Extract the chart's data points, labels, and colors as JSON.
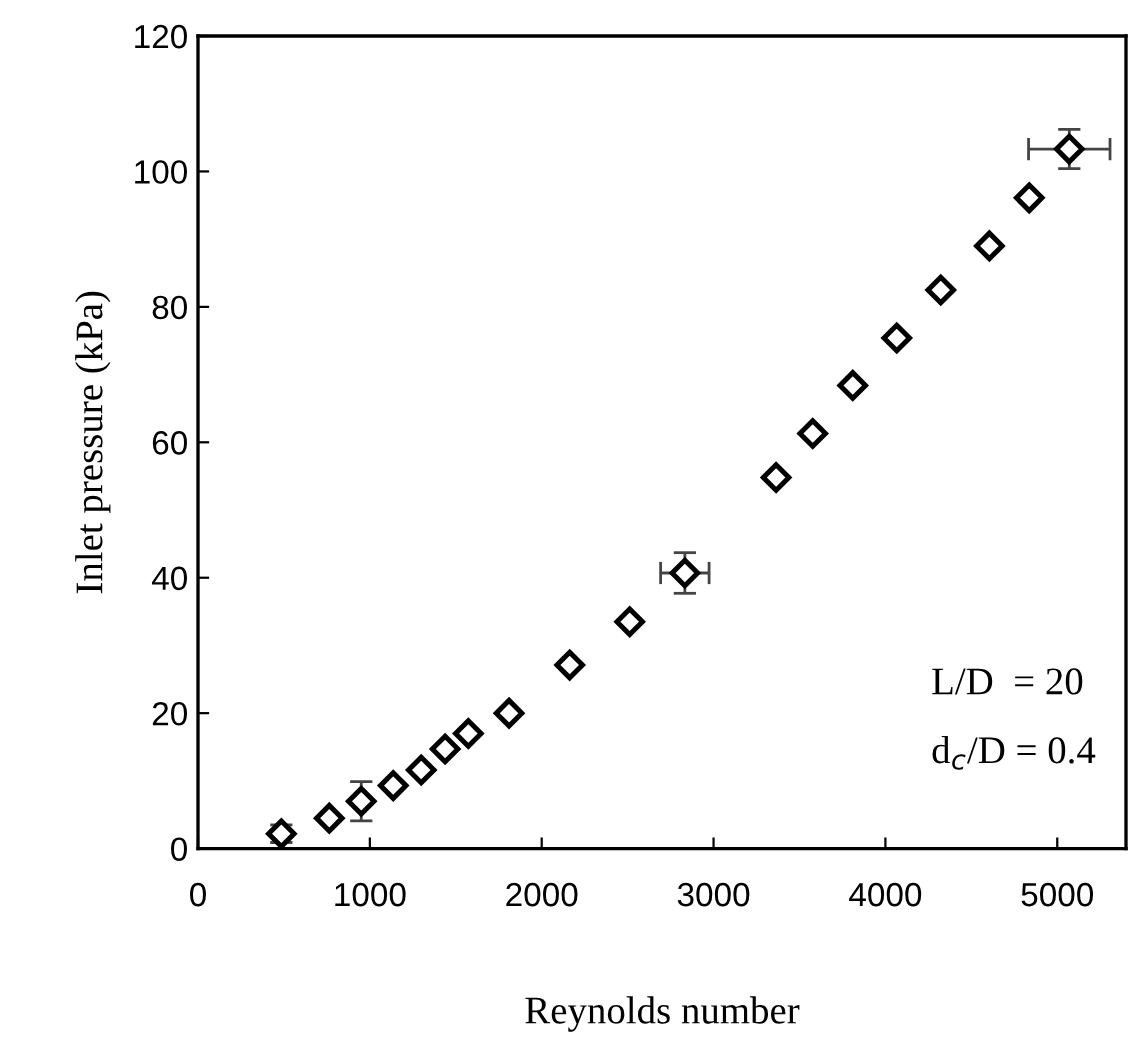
{
  "chart_data": {
    "type": "scatter",
    "xlabel": "Reynolds number",
    "ylabel": "Inlet pressure (kPa)",
    "xlim": [
      0,
      5400
    ],
    "xticks": [
      0,
      1000,
      2000,
      3000,
      4000,
      5000
    ],
    "ylim": [
      0,
      120
    ],
    "yticks": [
      0,
      20,
      40,
      60,
      80,
      100,
      120
    ],
    "marker": "diamond",
    "grid": false,
    "x": [
      485,
      764,
      950,
      1136,
      1299,
      1438,
      1573,
      1810,
      2163,
      2512,
      2833,
      3364,
      3577,
      3810,
      4066,
      4322,
      4605,
      4837,
      5070
    ],
    "series": [
      {
        "color": "#000000",
        "values": [
          2.2,
          4.5,
          7.0,
          9.3,
          11.6,
          14.7,
          17.0,
          20.0,
          27.1,
          33.5,
          40.7,
          54.8,
          61.3,
          68.4,
          75.4,
          82.5,
          89.0,
          96.1,
          103.3
        ],
        "errors": [
          1.3,
          null,
          2.9,
          null,
          null,
          null,
          null,
          null,
          null,
          null,
          3.0,
          null,
          null,
          null,
          null,
          null,
          null,
          null,
          2.9
        ],
        "xerrors": [
          null,
          null,
          null,
          null,
          null,
          null,
          null,
          null,
          null,
          null,
          141,
          null,
          null,
          null,
          null,
          null,
          null,
          null,
          237
        ]
      }
    ],
    "annotations": [
      "L/D  = 20",
      "d$_{c}$/D = 0.4"
    ]
  }
}
